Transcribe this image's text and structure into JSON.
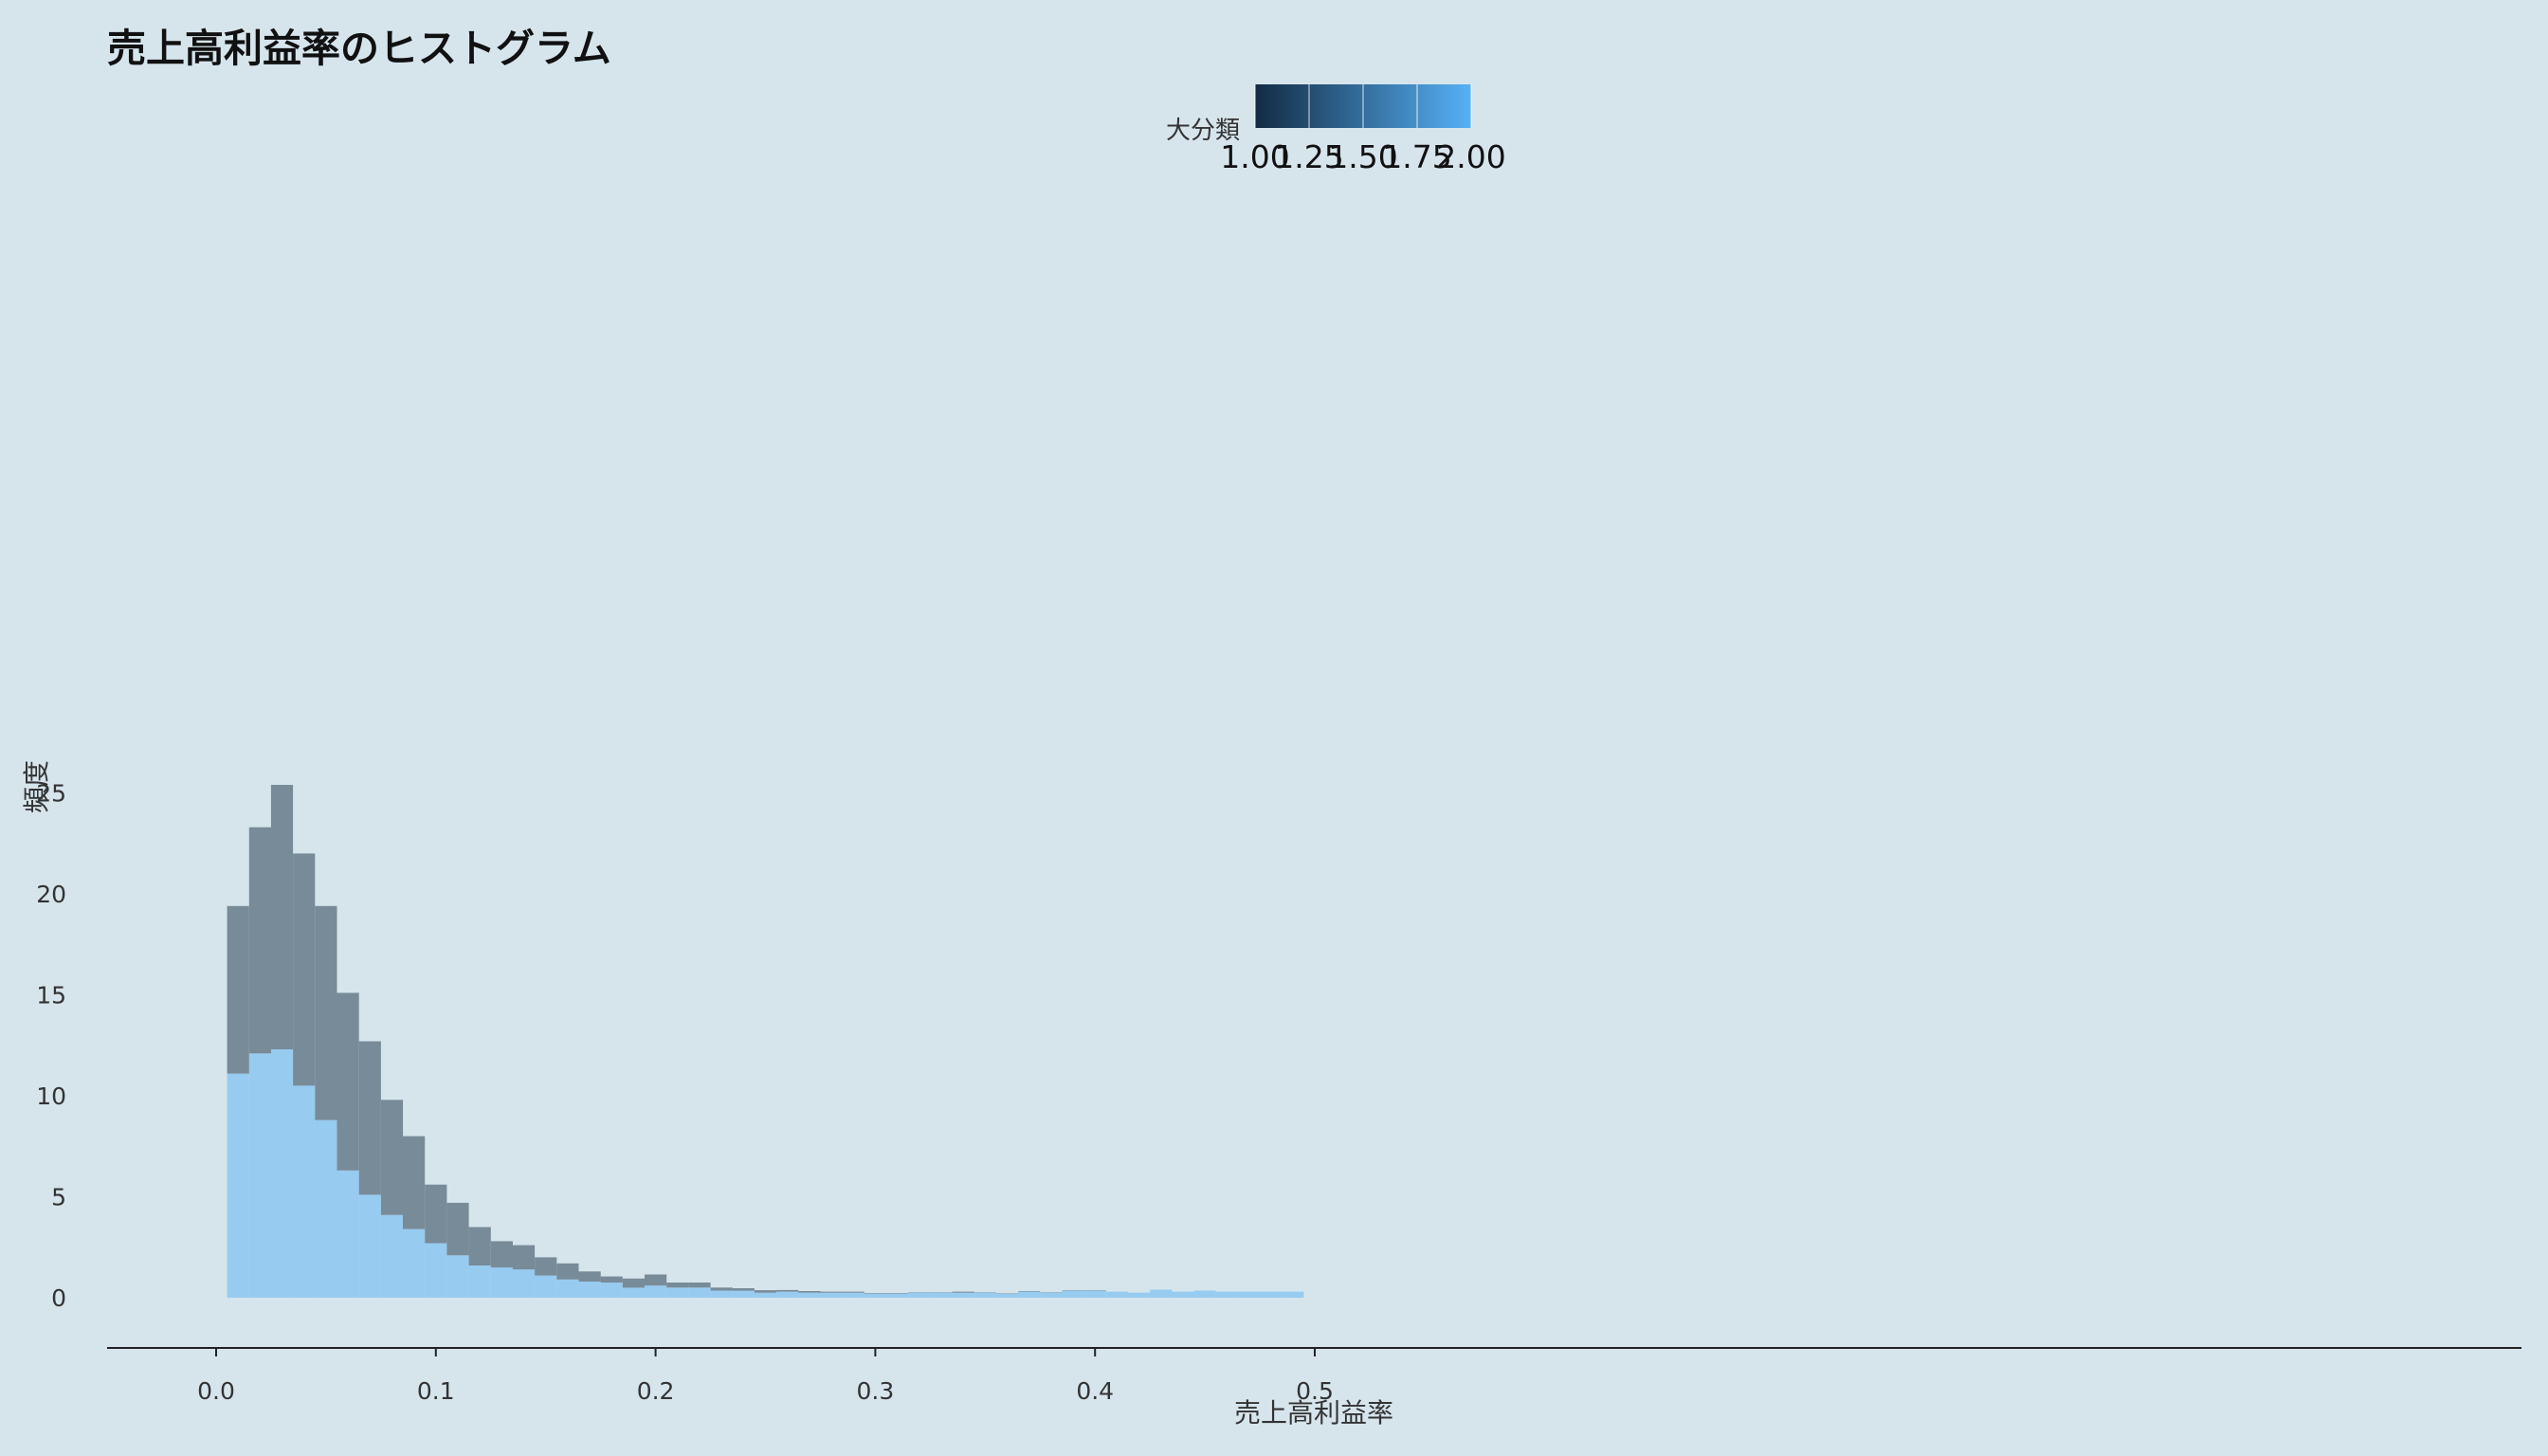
{
  "chart_data": {
    "type": "bar",
    "title": "売上高利益率のヒストグラム",
    "xlabel": "売上高利益率",
    "ylabel": "頻度",
    "xlim": [
      -0.025,
      0.525
    ],
    "ylim": [
      -1.2,
      26.5
    ],
    "x_ticks": [
      {
        "value": 0.0,
        "label": "0.0"
      },
      {
        "value": 0.1,
        "label": "0.1"
      },
      {
        "value": 0.2,
        "label": "0.2"
      },
      {
        "value": 0.3,
        "label": "0.3"
      },
      {
        "value": 0.4,
        "label": "0.4"
      },
      {
        "value": 0.5,
        "label": "0.5"
      }
    ],
    "y_ticks": [
      {
        "value": 0,
        "label": "0"
      },
      {
        "value": 5,
        "label": "5"
      },
      {
        "value": 10,
        "label": "10"
      },
      {
        "value": 15,
        "label": "15"
      },
      {
        "value": 20,
        "label": "20"
      },
      {
        "value": 25,
        "label": "25"
      }
    ],
    "grid": false,
    "stacked": true,
    "bin_width": 0.01,
    "bin_centers": [
      0.01,
      0.02,
      0.03,
      0.04,
      0.05,
      0.06,
      0.07,
      0.08,
      0.09,
      0.1,
      0.11,
      0.12,
      0.13,
      0.14,
      0.15,
      0.16,
      0.17,
      0.18,
      0.19,
      0.2,
      0.21,
      0.22,
      0.23,
      0.24,
      0.25,
      0.26,
      0.27,
      0.28,
      0.29,
      0.3,
      0.31,
      0.32,
      0.33,
      0.34,
      0.35,
      0.36,
      0.37,
      0.38,
      0.39,
      0.4,
      0.41,
      0.42,
      0.43,
      0.44,
      0.45,
      0.46,
      0.47,
      0.48,
      0.49
    ],
    "series": [
      {
        "legend_value": 2.0,
        "color": "#97cbf0",
        "values": [
          11.1,
          12.1,
          12.3,
          10.5,
          8.8,
          6.3,
          5.1,
          4.1,
          3.4,
          2.7,
          2.1,
          1.6,
          1.5,
          1.4,
          1.1,
          0.9,
          0.8,
          0.75,
          0.5,
          0.6,
          0.5,
          0.5,
          0.35,
          0.35,
          0.25,
          0.3,
          0.25,
          0.25,
          0.25,
          0.2,
          0.2,
          0.25,
          0.25,
          0.25,
          0.25,
          0.2,
          0.3,
          0.25,
          0.35,
          0.35,
          0.3,
          0.25,
          0.4,
          0.3,
          0.35,
          0.3,
          0.3,
          0.3,
          0.3
        ]
      },
      {
        "legend_value": 1.0,
        "color": "#788b98",
        "values": [
          8.3,
          11.2,
          13.1,
          11.5,
          10.6,
          8.8,
          7.6,
          5.7,
          4.6,
          2.9,
          2.6,
          1.9,
          1.3,
          1.2,
          0.9,
          0.8,
          0.5,
          0.3,
          0.45,
          0.55,
          0.25,
          0.25,
          0.15,
          0.12,
          0.12,
          0.08,
          0.08,
          0.05,
          0.05,
          0.03,
          0.03,
          0.02,
          0.02,
          0.05,
          0.02,
          0.02,
          0.03,
          0.02,
          0.02,
          0.02,
          0.0,
          0.0,
          0.0,
          0.0,
          0.0,
          0.0,
          0.0,
          0.0,
          0.0
        ]
      }
    ],
    "legend": {
      "title": "大分類",
      "position": "top",
      "colorbar": true,
      "color_low": "#132b43",
      "color_high": "#56b1f7",
      "range": [
        1.0,
        2.0
      ],
      "ticks": [
        {
          "value": 1.0,
          "label": "1.00"
        },
        {
          "value": 1.25,
          "label": "1.25"
        },
        {
          "value": 1.5,
          "label": "1.50"
        },
        {
          "value": 1.75,
          "label": "1.75"
        },
        {
          "value": 2.0,
          "label": "2.00"
        }
      ]
    }
  }
}
